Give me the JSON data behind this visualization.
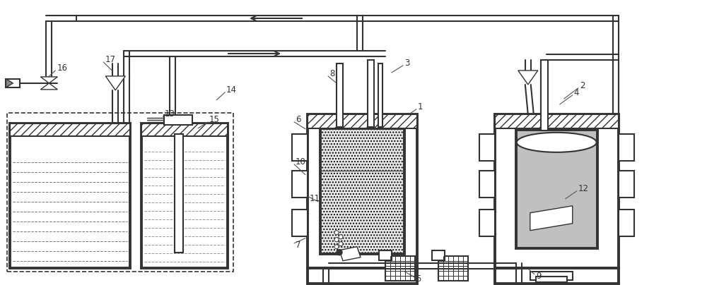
{
  "fig_width": 10.0,
  "fig_height": 4.04,
  "dpi": 100,
  "bg_color": "#ffffff",
  "line_color": "#333333",
  "label_fontsize": 8.5,
  "labels": [
    [
      591,
      152,
      "1"
    ],
    [
      820,
      122,
      "2"
    ],
    [
      572,
      90,
      "3"
    ],
    [
      812,
      132,
      "4"
    ],
    [
      588,
      396,
      "5"
    ],
    [
      418,
      170,
      "6"
    ],
    [
      418,
      348,
      "7"
    ],
    [
      466,
      105,
      "8"
    ],
    [
      758,
      392,
      "9"
    ],
    [
      418,
      230,
      "10"
    ],
    [
      438,
      282,
      "11"
    ],
    [
      818,
      268,
      "12"
    ],
    [
      232,
      162,
      "13"
    ],
    [
      320,
      128,
      "14"
    ],
    [
      296,
      170,
      "15"
    ],
    [
      80,
      97,
      "16"
    ],
    [
      148,
      85,
      "17"
    ]
  ],
  "leader_lines": [
    [
      589,
      155,
      570,
      168
    ],
    [
      818,
      125,
      798,
      140
    ],
    [
      570,
      93,
      554,
      103
    ],
    [
      810,
      135,
      792,
      148
    ],
    [
      586,
      393,
      572,
      385
    ],
    [
      416,
      173,
      432,
      183
    ],
    [
      416,
      345,
      432,
      338
    ],
    [
      464,
      108,
      476,
      118
    ],
    [
      756,
      389,
      748,
      382
    ],
    [
      416,
      233,
      432,
      248
    ],
    [
      436,
      279,
      450,
      286
    ],
    [
      816,
      271,
      800,
      282
    ],
    [
      230,
      165,
      244,
      173
    ],
    [
      318,
      131,
      306,
      142
    ],
    [
      294,
      173,
      280,
      182
    ],
    [
      78,
      100,
      65,
      112
    ],
    [
      146,
      88,
      158,
      100
    ]
  ]
}
